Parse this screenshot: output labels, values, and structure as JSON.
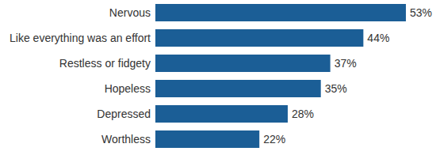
{
  "chart_data": {
    "type": "bar",
    "orientation": "horizontal",
    "categories": [
      "Nervous",
      "Like everything was an effort",
      "Restless or fidgety",
      "Hopeless",
      "Depressed",
      "Worthless"
    ],
    "values": [
      53,
      44,
      37,
      35,
      28,
      22
    ],
    "value_labels": [
      "53%",
      "44%",
      "37%",
      "35%",
      "28%",
      "22%"
    ],
    "color": "#1b5e96",
    "xlim": [
      0,
      54
    ],
    "data_labels": true,
    "tick_labels": "y",
    "grid": false
  }
}
